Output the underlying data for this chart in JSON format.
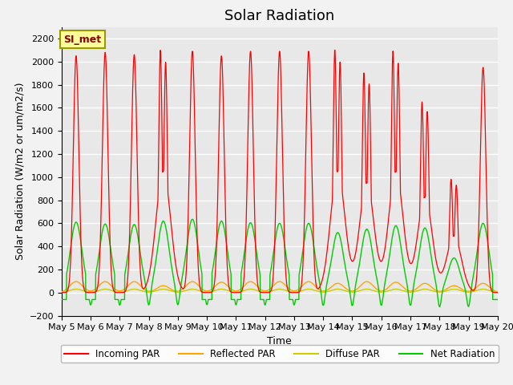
{
  "title": "Solar Radiation",
  "ylabel": "Solar Radiation (W/m2 or um/m2/s)",
  "xlabel": "Time",
  "ylim": [
    -200,
    2300
  ],
  "yticks": [
    -200,
    0,
    200,
    400,
    600,
    800,
    1000,
    1200,
    1400,
    1600,
    1800,
    2000,
    2200
  ],
  "xtick_labels": [
    "May 5",
    "May 6",
    "May 7",
    "May 8",
    "May 9",
    "May 10",
    "May 11",
    "May 12",
    "May 13",
    "May 14",
    "May 15",
    "May 16",
    "May 17",
    "May 18",
    "May 19",
    "May 20"
  ],
  "colors": {
    "incoming": "#FF0000",
    "reflected": "#FFA500",
    "diffuse": "#CCCC00",
    "net": "#00CC00"
  },
  "legend_labels": [
    "Incoming PAR",
    "Reflected PAR",
    "Diffuse PAR",
    "Net Radiation"
  ],
  "annotation_text": "SI_met",
  "annotation_color": "#8B0000",
  "annotation_bg": "#FFFF99",
  "annotation_border": "#999900",
  "bg_color": "#E8E8E8",
  "grid_color": "#FFFFFF",
  "title_fontsize": 13,
  "label_fontsize": 9,
  "tick_fontsize": 8,
  "n_days": 15,
  "pts_per_day": 144,
  "incoming_peaks": [
    2050,
    2080,
    2060,
    2100,
    2090,
    2050,
    2090,
    2090,
    2090,
    2100,
    1900,
    2090,
    1650,
    980,
    1950
  ],
  "incoming_cloudy_mid": [
    0,
    0,
    0,
    1,
    0,
    0,
    0,
    0,
    0,
    1,
    1,
    1,
    1,
    1,
    0
  ],
  "net_peaks": [
    610,
    595,
    590,
    620,
    635,
    620,
    605,
    600,
    600,
    520,
    550,
    580,
    560,
    300,
    600
  ],
  "reflected_peaks": [
    95,
    95,
    95,
    60,
    95,
    90,
    95,
    95,
    95,
    80,
    95,
    90,
    80,
    60,
    80
  ]
}
